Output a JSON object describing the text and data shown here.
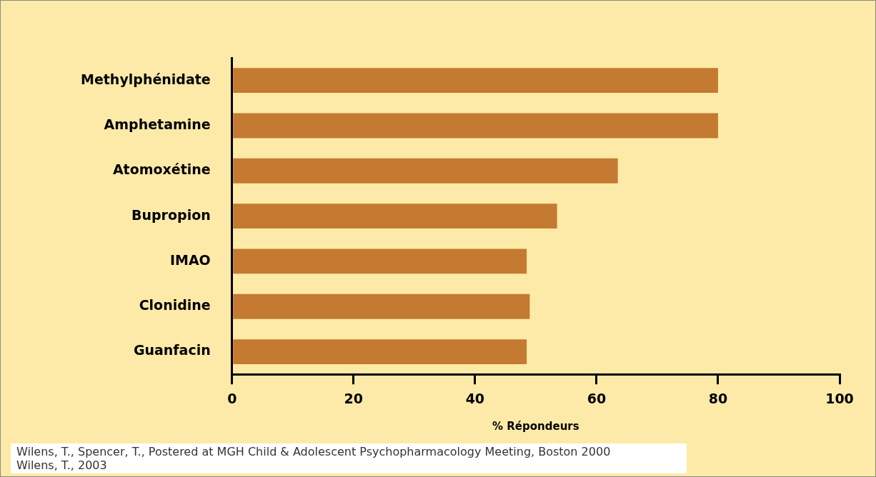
{
  "chart_data": {
    "type": "bar",
    "orientation": "horizontal",
    "categories": [
      "Methylphénidate",
      "Amphetamine",
      "Atomoxétine",
      "Bupropion",
      "IMAO",
      "Clonidine",
      "Guanfacin"
    ],
    "values": [
      80,
      80,
      63.5,
      53.5,
      48.5,
      49,
      48.5
    ],
    "color": "#c47a30",
    "xlim": [
      0,
      100
    ],
    "xticks": [
      0,
      20,
      40,
      60,
      80,
      100
    ],
    "xlabel": "% Répondeurs",
    "grid": false,
    "legend": false,
    "annotations": [
      "Wilens, T., Spencer, T., Postered at MGH Child & Adolescent Psychopharmacology Meeting, Boston 2000",
      "Wilens, T., 2003"
    ]
  }
}
